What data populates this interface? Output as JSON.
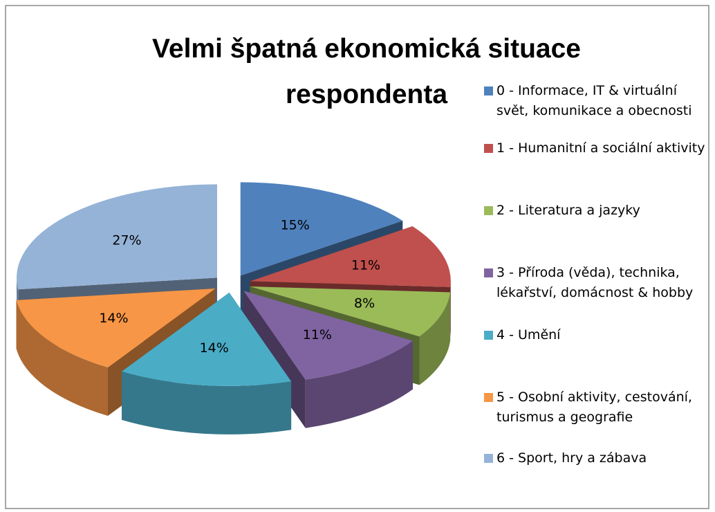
{
  "chart_data": {
    "type": "pie",
    "title": "Velmi špatná ekonomická situace respondenta",
    "categories": [
      "0 - Informace, IT & virtuální svět, komunikace a obecnosti",
      "1 - Humanitní a sociální aktivity",
      "2 - Literatura a jazyky",
      "3 - Příroda (věda), technika, lékařství, domácnost & hobby",
      "4 - Umění",
      "5 - Osobní aktivity, cestování, turismus a geografie",
      "6 - Sport, hry a zábava"
    ],
    "values": [
      15,
      11,
      8,
      11,
      14,
      14,
      27
    ],
    "value_labels": [
      "15%",
      "11%",
      "8%",
      "11%",
      "14%",
      "14%",
      "27%"
    ],
    "colors": [
      "#4f81bd",
      "#c0504d",
      "#9bbb59",
      "#8064a2",
      "#4bacc6",
      "#f79646",
      "#95b3d7"
    ],
    "legend": "right"
  }
}
